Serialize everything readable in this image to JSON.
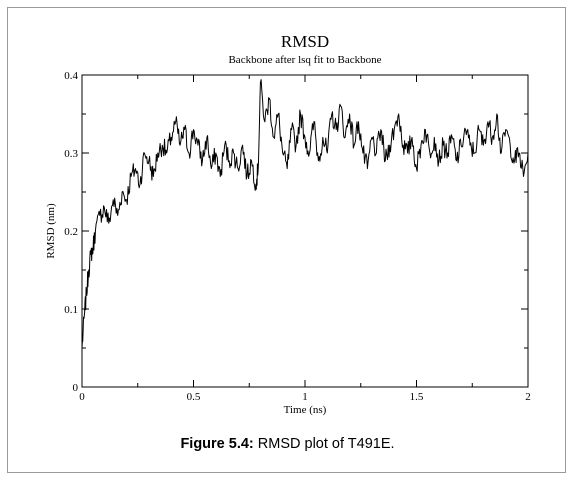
{
  "chart_data": {
    "type": "line",
    "title": "RMSD",
    "subtitle": "Backbone after lsq fit to Backbone",
    "xlabel": "Time (ns)",
    "ylabel": "RMSD (nm)",
    "xlim": [
      0,
      2
    ],
    "ylim": [
      0,
      0.4
    ],
    "xticks": [
      0,
      0.5,
      1,
      1.5,
      2
    ],
    "xtick_labels": [
      "0",
      "0.5",
      "1",
      "1.5",
      "2"
    ],
    "yticks": [
      0,
      0.1,
      0.2,
      0.3,
      0.4
    ],
    "ytick_labels": [
      "0",
      "0.1",
      "0.2",
      "0.3",
      "0.4"
    ],
    "grid": false,
    "series": [
      {
        "color": "#000000",
        "x": [
          0,
          0.01,
          0.02,
          0.03,
          0.04,
          0.05,
          0.06,
          0.08,
          0.1,
          0.12,
          0.14,
          0.16,
          0.18,
          0.2,
          0.22,
          0.24,
          0.26,
          0.28,
          0.3,
          0.32,
          0.34,
          0.36,
          0.38,
          0.4,
          0.42,
          0.44,
          0.46,
          0.48,
          0.5,
          0.52,
          0.54,
          0.56,
          0.58,
          0.6,
          0.62,
          0.64,
          0.66,
          0.68,
          0.7,
          0.72,
          0.74,
          0.76,
          0.78,
          0.79,
          0.8,
          0.82,
          0.84,
          0.86,
          0.88,
          0.9,
          0.92,
          0.94,
          0.96,
          0.98,
          1.0,
          1.02,
          1.04,
          1.06,
          1.08,
          1.1,
          1.12,
          1.14,
          1.16,
          1.18,
          1.2,
          1.22,
          1.24,
          1.26,
          1.28,
          1.3,
          1.32,
          1.34,
          1.36,
          1.38,
          1.4,
          1.42,
          1.44,
          1.46,
          1.48,
          1.5,
          1.52,
          1.54,
          1.56,
          1.58,
          1.6,
          1.62,
          1.64,
          1.66,
          1.68,
          1.7,
          1.72,
          1.74,
          1.76,
          1.78,
          1.8,
          1.82,
          1.84,
          1.86,
          1.88,
          1.9,
          1.92,
          1.94,
          1.96,
          1.98,
          2.0
        ],
        "y": [
          0.05,
          0.09,
          0.12,
          0.15,
          0.17,
          0.18,
          0.2,
          0.22,
          0.23,
          0.21,
          0.24,
          0.22,
          0.25,
          0.24,
          0.27,
          0.28,
          0.26,
          0.3,
          0.29,
          0.27,
          0.3,
          0.31,
          0.3,
          0.32,
          0.34,
          0.31,
          0.33,
          0.3,
          0.33,
          0.31,
          0.29,
          0.32,
          0.28,
          0.3,
          0.27,
          0.31,
          0.29,
          0.3,
          0.28,
          0.31,
          0.27,
          0.29,
          0.26,
          0.28,
          0.39,
          0.34,
          0.37,
          0.32,
          0.35,
          0.3,
          0.28,
          0.33,
          0.31,
          0.35,
          0.32,
          0.3,
          0.34,
          0.29,
          0.32,
          0.3,
          0.35,
          0.33,
          0.36,
          0.32,
          0.35,
          0.31,
          0.34,
          0.3,
          0.28,
          0.32,
          0.3,
          0.33,
          0.29,
          0.31,
          0.33,
          0.35,
          0.31,
          0.3,
          0.32,
          0.28,
          0.31,
          0.33,
          0.3,
          0.32,
          0.29,
          0.31,
          0.3,
          0.32,
          0.29,
          0.31,
          0.33,
          0.31,
          0.3,
          0.33,
          0.31,
          0.34,
          0.32,
          0.35,
          0.3,
          0.33,
          0.31,
          0.29,
          0.3,
          0.27,
          0.3
        ]
      }
    ]
  },
  "caption": {
    "label": "Figure 5.4:",
    "text": " RMSD plot of T491E."
  }
}
